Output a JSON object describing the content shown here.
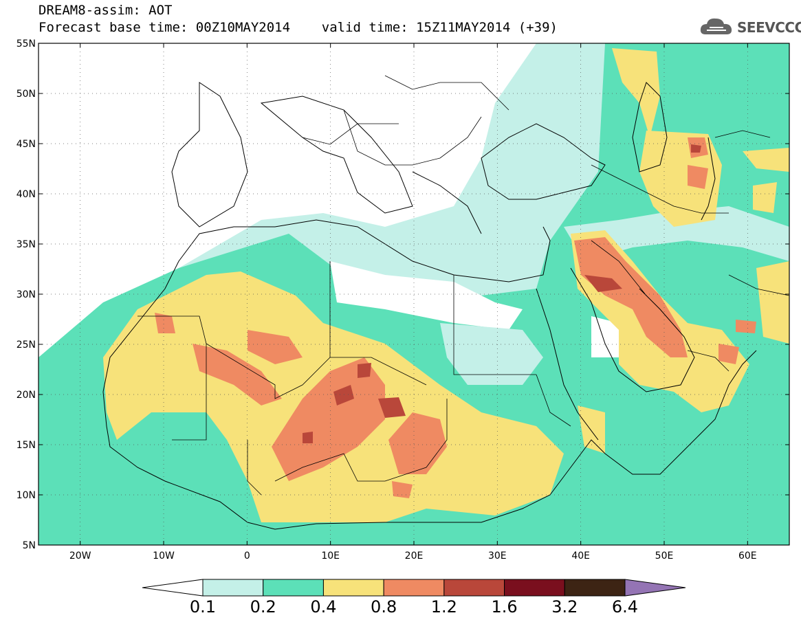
{
  "title": {
    "line1": "DREAM8-assim: AOT",
    "line2": "Forecast base time: 00Z10MAY2014    valid time: 15Z11MAY2014 (+39)"
  },
  "logo": {
    "text": "SEEVCCC",
    "icon": "cloud-icon"
  },
  "map": {
    "lon_range": [
      -25,
      65
    ],
    "lat_range": [
      5,
      55
    ],
    "lat_ticks": [
      {
        "value": 55,
        "label": "55N"
      },
      {
        "value": 50,
        "label": "50N"
      },
      {
        "value": 45,
        "label": "45N"
      },
      {
        "value": 40,
        "label": "40N"
      },
      {
        "value": 35,
        "label": "35N"
      },
      {
        "value": 30,
        "label": "30N"
      },
      {
        "value": 25,
        "label": "25N"
      },
      {
        "value": 20,
        "label": "20N"
      },
      {
        "value": 15,
        "label": "15N"
      },
      {
        "value": 10,
        "label": "10N"
      },
      {
        "value": 5,
        "label": "5N"
      }
    ],
    "lon_ticks": [
      {
        "value": -20,
        "label": "20W"
      },
      {
        "value": -10,
        "label": "10W"
      },
      {
        "value": 0,
        "label": "0"
      },
      {
        "value": 10,
        "label": "10E"
      },
      {
        "value": 20,
        "label": "20E"
      },
      {
        "value": 30,
        "label": "30E"
      },
      {
        "value": 40,
        "label": "40E"
      },
      {
        "value": 50,
        "label": "50E"
      },
      {
        "value": 60,
        "label": "60E"
      }
    ],
    "grid": "dotted"
  },
  "colorbar": {
    "labels": [
      "0.1",
      "0.2",
      "0.4",
      "0.8",
      "1.2",
      "1.6",
      "3.2",
      "6.4"
    ],
    "colors": [
      "#ffffff",
      "#c4f0e8",
      "#5ce0b8",
      "#f7e27a",
      "#ef8a62",
      "#b9473a",
      "#7a0f1e",
      "#3d2414",
      "#9474b4"
    ]
  }
}
